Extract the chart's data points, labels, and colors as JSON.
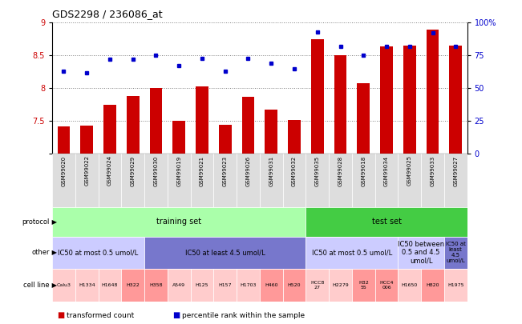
{
  "title": "GDS2298 / 236086_at",
  "samples": [
    "GSM99020",
    "GSM99022",
    "GSM99024",
    "GSM99029",
    "GSM99030",
    "GSM99019",
    "GSM99021",
    "GSM99023",
    "GSM99026",
    "GSM99031",
    "GSM99032",
    "GSM99035",
    "GSM99028",
    "GSM99018",
    "GSM99034",
    "GSM99025",
    "GSM99033",
    "GSM99027"
  ],
  "bar_values": [
    7.42,
    7.43,
    7.75,
    7.88,
    8.0,
    7.5,
    8.03,
    7.44,
    7.87,
    7.68,
    7.52,
    8.75,
    8.5,
    8.08,
    8.64,
    8.65,
    8.9,
    8.65
  ],
  "dot_percentiles": [
    63,
    62,
    72,
    72,
    75,
    67,
    73,
    63,
    73,
    69,
    65,
    93,
    82,
    75,
    82,
    82,
    92,
    82
  ],
  "ylim_left": [
    7.0,
    9.0
  ],
  "ylim_right": [
    0,
    100
  ],
  "yticks_left": [
    7.0,
    7.5,
    8.0,
    8.5,
    9.0
  ],
  "yticks_right": [
    0,
    25,
    50,
    75,
    100
  ],
  "bar_color": "#cc0000",
  "dot_color": "#0000cc",
  "protocol_sections": [
    {
      "text": "training set",
      "start": 0,
      "end": 11,
      "color": "#aaffaa"
    },
    {
      "text": "test set",
      "start": 11,
      "end": 18,
      "color": "#44cc44"
    }
  ],
  "other_sections": [
    {
      "text": "IC50 at most 0.5 umol/L",
      "start": 0,
      "end": 4,
      "color": "#ccccff"
    },
    {
      "text": "IC50 at least 4.5 umol/L",
      "start": 4,
      "end": 11,
      "color": "#7777cc"
    },
    {
      "text": "IC50 at most 0.5 umol/L",
      "start": 11,
      "end": 15,
      "color": "#ccccff"
    },
    {
      "text": "IC50 between\n0.5 and 4.5\numol/L",
      "start": 15,
      "end": 17,
      "color": "#ccccff"
    },
    {
      "text": "IC50 at\nleast\n4.5\numol/L",
      "start": 17,
      "end": 18,
      "color": "#7777cc"
    }
  ],
  "cell_line_cells": [
    {
      "text": "Calu3",
      "color": "#ffcccc"
    },
    {
      "text": "H1334",
      "color": "#ffcccc"
    },
    {
      "text": "H1648",
      "color": "#ffcccc"
    },
    {
      "text": "H322",
      "color": "#ff9999"
    },
    {
      "text": "H358",
      "color": "#ff9999"
    },
    {
      "text": "A549",
      "color": "#ffcccc"
    },
    {
      "text": "H125",
      "color": "#ffcccc"
    },
    {
      "text": "H157",
      "color": "#ffcccc"
    },
    {
      "text": "H1703",
      "color": "#ffcccc"
    },
    {
      "text": "H460",
      "color": "#ff9999"
    },
    {
      "text": "H520",
      "color": "#ff9999"
    },
    {
      "text": "HCC8\n27",
      "color": "#ffcccc"
    },
    {
      "text": "H2279",
      "color": "#ffcccc"
    },
    {
      "text": "H32\n55",
      "color": "#ff9999"
    },
    {
      "text": "HCC4\n006",
      "color": "#ff9999"
    },
    {
      "text": "H1650",
      "color": "#ffcccc"
    },
    {
      "text": "H820",
      "color": "#ff9999"
    },
    {
      "text": "H1975",
      "color": "#ffcccc"
    }
  ],
  "legend_items": [
    {
      "label": "transformed count",
      "color": "#cc0000"
    },
    {
      "label": "percentile rank within the sample",
      "color": "#0000cc"
    }
  ]
}
